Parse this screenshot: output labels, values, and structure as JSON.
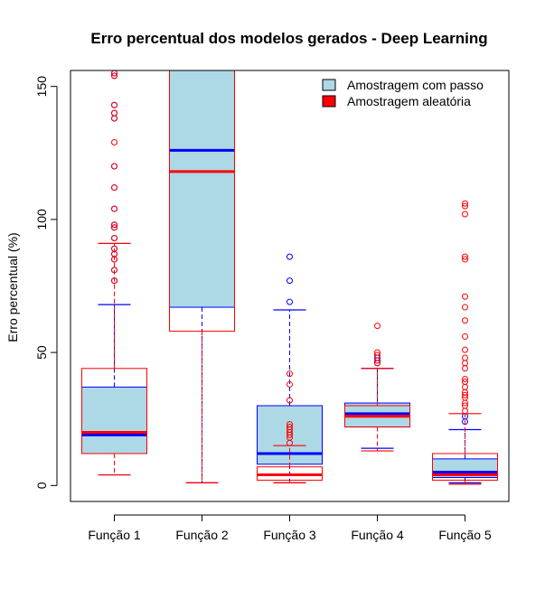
{
  "chart_data": {
    "type": "boxplot",
    "title": "Erro percentual dos modelos gerados - Deep Learning",
    "xlabel": "",
    "ylabel": "Erro percentual (%)",
    "ylim": [
      -6,
      156
    ],
    "yticks": [
      0,
      50,
      100,
      150
    ],
    "categories": [
      "Função 1",
      "Função 2",
      "Função 3",
      "Função 4",
      "Função 5"
    ],
    "legend": {
      "position": "top-right",
      "entries": [
        {
          "label": "Amostragem com passo",
          "fill": "#add8e6",
          "border": "#000000"
        },
        {
          "label": "Amostragem aleatória",
          "fill": "#ff0000",
          "border": "#000000"
        }
      ]
    },
    "series": [
      {
        "name": "Amostragem com passo",
        "box_fill": "#add8e6",
        "border_color": "#0000ff",
        "median_color": "#0000ff",
        "boxes": [
          {
            "min": 4,
            "q1": 12,
            "median": 19,
            "q3": 37,
            "max": 68,
            "outliers": [
              77,
              81,
              85,
              87,
              89,
              93,
              97,
              98,
              104,
              112,
              120,
              138,
              140,
              143,
              154,
              155
            ]
          },
          {
            "min": 1,
            "q1": 67,
            "median": 126,
            "q3": 160,
            "max": 160,
            "outliers": []
          },
          {
            "min": 1,
            "q1": 8,
            "median": 12,
            "q3": 30,
            "max": 66,
            "outliers": [
              69,
              77,
              86
            ]
          },
          {
            "min": 14,
            "q1": 22,
            "median": 27,
            "q3": 31,
            "max": 44,
            "outliers": [
              46,
              47,
              48
            ]
          },
          {
            "min": 1,
            "q1": 3,
            "median": 5,
            "q3": 10,
            "max": 21,
            "outliers": [
              24,
              26
            ]
          }
        ]
      },
      {
        "name": "Amostragem aleatória",
        "box_fill": "#ffffff",
        "border_color": "#ff0000",
        "median_color": "#ff0000",
        "boxes": [
          {
            "min": 4,
            "q1": 12,
            "median": 20,
            "q3": 44,
            "max": 91,
            "outliers": [
              77,
              81,
              85,
              87,
              89,
              93,
              97,
              98,
              104,
              112,
              120,
              129,
              138,
              140,
              143,
              154,
              155
            ]
          },
          {
            "min": 1,
            "q1": 58,
            "median": 118,
            "q3": 160,
            "max": 160,
            "outliers": []
          },
          {
            "min": 1,
            "q1": 2,
            "median": 4,
            "q3": 7,
            "max": 15,
            "outliers": [
              16,
              18,
              19,
              20,
              21,
              22,
              23,
              32,
              38,
              42
            ]
          },
          {
            "min": 13,
            "q1": 22,
            "median": 26,
            "q3": 30,
            "max": 44,
            "outliers": [
              46,
              47,
              49,
              50,
              60
            ]
          },
          {
            "min": 0.5,
            "q1": 2,
            "median": 4,
            "q3": 12,
            "max": 27,
            "outliers": [
              28,
              30,
              31,
              33,
              34,
              35,
              37,
              39,
              40,
              44,
              46,
              48,
              51,
              56,
              62,
              67,
              71,
              85,
              86,
              102,
              105,
              106
            ]
          }
        ]
      }
    ]
  }
}
